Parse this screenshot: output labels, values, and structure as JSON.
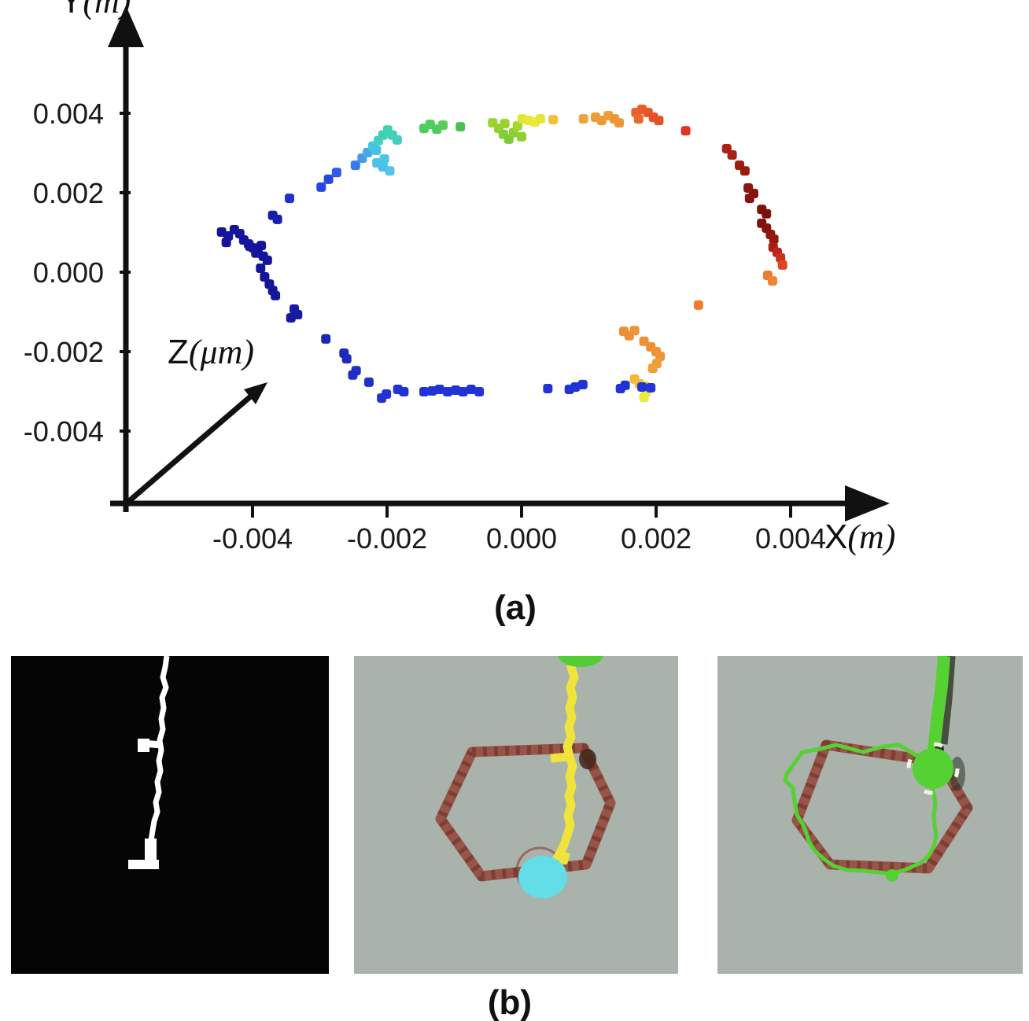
{
  "figure": {
    "caption_a": "(a)",
    "caption_b": "(b)"
  },
  "chart_data": {
    "type": "scatter",
    "title": "",
    "xlabel": {
      "sym": "X",
      "unit": "(m)"
    },
    "ylabel": {
      "sym": "Y",
      "unit": "(m)"
    },
    "zlabel": {
      "sym": "Z",
      "unit": "(μm)"
    },
    "x_ticks": [
      -0.004,
      -0.002,
      0.0,
      0.002,
      0.004
    ],
    "x_tick_labels": [
      "-0.004",
      "-0.002",
      "0.000",
      "0.002",
      "0.004"
    ],
    "y_ticks": [
      0.004,
      0.002,
      0.0,
      -0.002,
      -0.004
    ],
    "y_tick_labels": [
      "0.004",
      "0.002",
      "0.000",
      "-0.002",
      "-0.004"
    ],
    "xlim": [
      -0.0061,
      0.0055
    ],
    "ylim": [
      -0.0059,
      0.0067
    ],
    "grid": false,
    "legend": "none",
    "axis_color": "#111111",
    "colormap": "jet (time-colored trajectory loop)",
    "points": [
      [
        -0.00446,
        0.00101,
        "#15159c"
      ],
      [
        -0.00436,
        0.00091,
        "#15159c"
      ],
      [
        -0.00427,
        0.00107,
        "#15159c"
      ],
      [
        -0.00419,
        0.00097,
        "#15159c"
      ],
      [
        -0.00413,
        0.00081,
        "#15159c"
      ],
      [
        -0.00439,
        0.00075,
        "#15159c"
      ],
      [
        -0.00406,
        0.00071,
        "#15159c"
      ],
      [
        -0.00399,
        0.00061,
        "#15159c"
      ],
      [
        -0.00392,
        0.00051,
        "#15159c"
      ],
      [
        -0.00387,
        0.00067,
        "#15159c"
      ],
      [
        -0.00404,
        0.00065,
        "#15159c"
      ],
      [
        -0.00395,
        0.00048,
        "#15159c"
      ],
      [
        -0.00384,
        0.0004,
        "#15159c"
      ],
      [
        -0.00378,
        0.0003,
        "#15159c"
      ],
      [
        -0.00388,
        0.0001,
        "#15159c"
      ],
      [
        -0.00382,
        -0.00012,
        "#15159c"
      ],
      [
        -0.00375,
        -0.0003,
        "#15159c"
      ],
      [
        -0.0037,
        -0.00046,
        "#15159c"
      ],
      [
        -0.00366,
        -0.00059,
        "#15159c"
      ],
      [
        -0.0037,
        0.00143,
        "#1a1cae"
      ],
      [
        -0.00363,
        0.00133,
        "#1a1cae"
      ],
      [
        -0.00345,
        0.00186,
        "#2130cd"
      ],
      [
        -0.00298,
        0.00214,
        "#2747e2"
      ],
      [
        -0.00287,
        0.00234,
        "#2747e2"
      ],
      [
        -0.00275,
        0.00251,
        "#2f5ae6"
      ],
      [
        -0.00247,
        0.00269,
        "#3a7ae8"
      ],
      [
        -0.00237,
        0.00287,
        "#459ae9"
      ],
      [
        -0.00229,
        0.00301,
        "#4aa8e8"
      ],
      [
        -0.00221,
        0.00317,
        "#46c4e0"
      ],
      [
        -0.00213,
        0.00331,
        "#41d0c4"
      ],
      [
        -0.00206,
        0.00345,
        "#3dd3b2"
      ],
      [
        -0.00199,
        0.00358,
        "#3ed3ae"
      ],
      [
        -0.00192,
        0.00345,
        "#40d2b8"
      ],
      [
        -0.00185,
        0.00333,
        "#43cfc0"
      ],
      [
        -0.00216,
        0.00307,
        "#48c0e4"
      ],
      [
        -0.00215,
        0.00275,
        "#4cc0ea"
      ],
      [
        -0.00206,
        0.00265,
        "#4cc0ea"
      ],
      [
        -0.00196,
        0.00255,
        "#50c4ea"
      ],
      [
        -0.00204,
        0.00285,
        "#4ac6e8"
      ],
      [
        -0.00145,
        0.00362,
        "#4fca60"
      ],
      [
        -0.00136,
        0.00372,
        "#52cc5c"
      ],
      [
        -0.00126,
        0.0036,
        "#4fca60"
      ],
      [
        -0.00117,
        0.0037,
        "#55cd58"
      ],
      [
        -0.00091,
        0.00366,
        "#49c251"
      ],
      [
        -0.00043,
        0.00376,
        "#9cd32f"
      ],
      [
        -0.00034,
        0.00362,
        "#95d133"
      ],
      [
        -0.00027,
        0.00347,
        "#86cd37"
      ],
      [
        -0.00019,
        0.00335,
        "#7cca3a"
      ],
      [
        -0.00012,
        0.00351,
        "#8fcf34"
      ],
      [
        -6e-05,
        0.00368,
        "#a6d52c"
      ],
      [
        -0.00025,
        0.00374,
        "#9ad22f"
      ],
      [
        0.0,
        0.00341,
        "#92d032"
      ],
      [
        1e-05,
        0.00386,
        "#dfe634"
      ],
      [
        0.00011,
        0.00382,
        "#e4e836"
      ],
      [
        0.0002,
        0.00378,
        "#e8e938"
      ],
      [
        0.00028,
        0.00386,
        "#e3e734"
      ],
      [
        0.00047,
        0.00384,
        "#f1c136"
      ],
      [
        0.00092,
        0.00386,
        "#f0a338"
      ],
      [
        0.0011,
        0.0039,
        "#ef9d36"
      ],
      [
        0.00119,
        0.00382,
        "#ef9a36"
      ],
      [
        0.00129,
        0.00394,
        "#ef9d36"
      ],
      [
        0.00138,
        0.00386,
        "#ee9634"
      ],
      [
        0.00145,
        0.00376,
        "#ee9634"
      ],
      [
        0.0017,
        0.00402,
        "#e9622c"
      ],
      [
        0.00179,
        0.0041,
        "#e75c2a"
      ],
      [
        0.00188,
        0.00402,
        "#e65628"
      ],
      [
        0.00196,
        0.0039,
        "#e65226"
      ],
      [
        0.00204,
        0.00382,
        "#e55226"
      ],
      [
        0.00174,
        0.00386,
        "#ea662c"
      ],
      [
        0.00244,
        0.00356,
        "#e03424"
      ],
      [
        0.00305,
        0.00311,
        "#ad2118"
      ],
      [
        0.00313,
        0.00295,
        "#a81f16"
      ],
      [
        0.00324,
        0.00269,
        "#9c1b12"
      ],
      [
        0.00332,
        0.00255,
        "#9a1a12"
      ],
      [
        0.00337,
        0.00212,
        "#8a170e"
      ],
      [
        0.00345,
        0.00198,
        "#84150d"
      ],
      [
        0.00339,
        0.00186,
        "#86160d"
      ],
      [
        0.00357,
        0.00158,
        "#7d130b"
      ],
      [
        0.00364,
        0.00147,
        "#7b120b"
      ],
      [
        0.00357,
        0.00123,
        "#7e130b"
      ],
      [
        0.00364,
        0.00111,
        "#82140c"
      ],
      [
        0.0037,
        0.00095,
        "#8c160e"
      ],
      [
        0.00375,
        0.00083,
        "#941810"
      ],
      [
        0.00374,
        0.00063,
        "#a81d14"
      ],
      [
        0.0038,
        0.0005,
        "#bc2418"
      ],
      [
        0.00385,
        0.00036,
        "#ce2f1c"
      ],
      [
        0.00388,
        0.00018,
        "#dd4522"
      ],
      [
        0.00366,
        -8e-05,
        "#ec7c30"
      ],
      [
        0.00373,
        -0.00022,
        "#ee8532"
      ],
      [
        0.00263,
        -0.00083,
        "#ee7e2e"
      ],
      [
        0.00152,
        -0.00149,
        "#ee8f34"
      ],
      [
        0.0016,
        -0.0016,
        "#ee8f34"
      ],
      [
        0.00168,
        -0.00147,
        "#ef9336"
      ],
      [
        0.00182,
        -0.00174,
        "#ee9034"
      ],
      [
        0.00192,
        -0.00188,
        "#ee9034"
      ],
      [
        0.002,
        -0.002,
        "#ef9336"
      ],
      [
        0.00206,
        -0.00212,
        "#ef9536"
      ],
      [
        0.00201,
        -0.0023,
        "#f09d38"
      ],
      [
        0.00195,
        -0.00242,
        "#f0a038"
      ],
      [
        0.00168,
        -0.00269,
        "#f2ba3c"
      ],
      [
        0.00175,
        -0.00281,
        "#f2bc3c"
      ],
      [
        0.00184,
        -0.00287,
        "#eede3e"
      ],
      [
        0.00185,
        -0.00303,
        "#ecea40"
      ],
      [
        0.00182,
        -0.00315,
        "#e8ec42"
      ],
      [
        0.00192,
        -0.00291,
        "#2335d8"
      ],
      [
        0.00179,
        -0.00289,
        "#2133d4"
      ],
      [
        0.00154,
        -0.00285,
        "#2133d4"
      ],
      [
        0.00147,
        -0.00293,
        "#2133d4"
      ],
      [
        0.00091,
        -0.00283,
        "#2133d4"
      ],
      [
        0.0008,
        -0.00289,
        "#2133d4"
      ],
      [
        0.00071,
        -0.00295,
        "#2133d4"
      ],
      [
        0.00039,
        -0.00293,
        "#2133d4"
      ],
      [
        -0.00063,
        -0.00301,
        "#2133d4"
      ],
      [
        -0.00075,
        -0.00295,
        "#2133d4"
      ],
      [
        -0.00087,
        -0.00301,
        "#2133d4"
      ],
      [
        -0.00098,
        -0.00297,
        "#2133d4"
      ],
      [
        -0.0011,
        -0.00301,
        "#2133d4"
      ],
      [
        -0.00122,
        -0.00295,
        "#2133d4"
      ],
      [
        -0.00133,
        -0.00299,
        "#2133d4"
      ],
      [
        -0.00145,
        -0.00301,
        "#2133d4"
      ],
      [
        -0.00175,
        -0.00301,
        "#2133d4"
      ],
      [
        -0.00184,
        -0.00295,
        "#2133d4"
      ],
      [
        -0.00201,
        -0.00307,
        "#2133d4"
      ],
      [
        -0.00208,
        -0.00317,
        "#2133d4"
      ],
      [
        -0.00227,
        -0.00277,
        "#2030cc"
      ],
      [
        -0.00246,
        -0.00248,
        "#1f2cc6"
      ],
      [
        -0.00251,
        -0.00259,
        "#1f2cc6"
      ],
      [
        -0.0026,
        -0.00218,
        "#1e2abe"
      ],
      [
        -0.00264,
        -0.00204,
        "#1e2abe"
      ],
      [
        -0.00291,
        -0.00168,
        "#1c26b6"
      ],
      [
        -0.00338,
        -0.00093,
        "#181ca2"
      ],
      [
        -0.00333,
        -0.00107,
        "#181ca2"
      ],
      [
        -0.00343,
        -0.00115,
        "#171a9e"
      ]
    ]
  },
  "panel_b": {
    "mask": {
      "background": "#050505",
      "line_color": "#ffffff"
    },
    "micrograph": {
      "background": "#a9b2ab",
      "hexagon_color": "#93483a",
      "hexagon_speckle": "#5f241b"
    },
    "middle": {
      "path_color": "#f0e33c",
      "endpoint_color": "#63dde6",
      "top_blob_color": "#53cc38",
      "dark_patch": "#412419",
      "ring_color": "#8a3228"
    },
    "right": {
      "path_color": "#55d133",
      "blob_color": "#55d133",
      "shadow_color": "#2c3526",
      "dash_color": "#f2f2e8"
    }
  }
}
